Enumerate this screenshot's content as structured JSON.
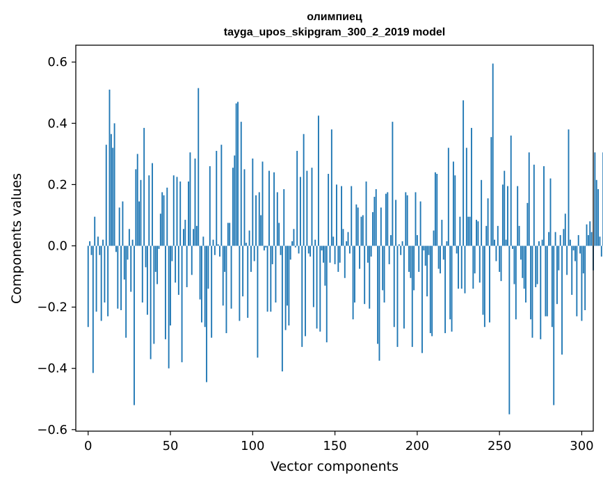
{
  "chart_data": {
    "type": "bar",
    "title": "олимпиец",
    "subtitle": "tayga_upos_skipgram_300_2_2019 model",
    "xlabel": "Vector components",
    "ylabel": "Components values",
    "xlim": [
      -7.5,
      307
    ],
    "ylim": [
      -0.605,
      0.655
    ],
    "xticks": [
      0,
      50,
      100,
      150,
      200,
      250,
      300
    ],
    "xtick_labels": [
      "0",
      "50",
      "100",
      "150",
      "200",
      "250",
      "300"
    ],
    "yticks": [
      -0.6,
      -0.4,
      -0.2,
      0.0,
      0.2,
      0.4,
      0.6
    ],
    "ytick_labels": [
      "−0.6",
      "−0.4",
      "−0.2",
      "0.0",
      "0.2",
      "0.4",
      "0.6"
    ],
    "bar_color": "#1f77b4",
    "x_start": 0,
    "values": [
      -0.265,
      0.015,
      -0.03,
      -0.415,
      0.095,
      -0.215,
      0.03,
      -0.03,
      -0.245,
      0.02,
      -0.185,
      0.33,
      -0.23,
      0.51,
      0.365,
      0.32,
      0.4,
      -0.02,
      -0.205,
      0.125,
      -0.21,
      0.145,
      -0.11,
      -0.3,
      -0.045,
      0.055,
      -0.15,
      0.02,
      -0.52,
      0.25,
      0.3,
      0.145,
      0.215,
      -0.185,
      0.385,
      -0.07,
      -0.225,
      0.23,
      -0.37,
      0.27,
      -0.32,
      -0.085,
      -0.125,
      -0.01,
      0.105,
      0.175,
      0.165,
      -0.305,
      0.19,
      -0.4,
      -0.26,
      -0.05,
      0.23,
      -0.12,
      0.225,
      -0.16,
      0.21,
      -0.38,
      0.055,
      0.085,
      -0.135,
      0.21,
      0.305,
      -0.095,
      0.055,
      0.285,
      0.065,
      0.515,
      -0.175,
      -0.25,
      0.03,
      -0.265,
      -0.445,
      -0.14,
      0.26,
      -0.3,
      0.02,
      -0.03,
      0.31,
      0.005,
      -0.035,
      0.33,
      -0.195,
      -0.085,
      -0.285,
      0.075,
      0.075,
      -0.205,
      0.255,
      0.295,
      0.465,
      0.47,
      -0.245,
      0.405,
      -0.165,
      0.25,
      0.01,
      -0.235,
      0.05,
      -0.085,
      0.285,
      -0.05,
      0.165,
      -0.365,
      0.175,
      0.1,
      0.275,
      -0.015,
      -0.005,
      -0.215,
      0.245,
      -0.215,
      -0.06,
      0.24,
      -0.185,
      0.175,
      0.075,
      -0.03,
      -0.41,
      0.185,
      -0.275,
      -0.195,
      -0.26,
      -0.045,
      0.015,
      0.055,
      -0.005,
      0.31,
      -0.025,
      0.225,
      -0.33,
      0.365,
      -0.295,
      0.245,
      -0.025,
      -0.035,
      0.255,
      -0.2,
      0.02,
      -0.27,
      0.425,
      -0.28,
      -0.015,
      -0.055,
      -0.13,
      -0.315,
      0.235,
      -0.055,
      0.38,
      0.03,
      -0.06,
      0.2,
      -0.085,
      -0.055,
      0.195,
      0.055,
      -0.105,
      0.015,
      0.045,
      -0.025,
      0.195,
      -0.24,
      -0.185,
      0.135,
      0.125,
      -0.075,
      0.095,
      0.1,
      -0.19,
      0.21,
      -0.055,
      -0.205,
      -0.035,
      0.11,
      0.16,
      0.185,
      -0.32,
      -0.375,
      0.125,
      -0.145,
      -0.185,
      0.17,
      0.175,
      -0.06,
      0.035,
      0.405,
      -0.265,
      0.15,
      -0.33,
      0.005,
      -0.03,
      0.015,
      -0.27,
      0.175,
      0.165,
      -0.085,
      -0.105,
      -0.33,
      -0.145,
      0.175,
      0.035,
      -0.085,
      0.145,
      -0.35,
      -0.015,
      -0.065,
      -0.165,
      -0.03,
      -0.285,
      -0.295,
      0.05,
      0.24,
      0.235,
      -0.075,
      -0.09,
      0.085,
      -0.045,
      -0.285,
      0.015,
      0.32,
      -0.24,
      -0.28,
      0.275,
      0.23,
      -0.025,
      -0.14,
      0.095,
      -0.14,
      0.475,
      -0.155,
      0.32,
      0.095,
      0.095,
      0.385,
      -0.14,
      -0.09,
      0.085,
      0.08,
      -0.12,
      0.215,
      -0.225,
      -0.265,
      0.065,
      0.155,
      -0.25,
      0.355,
      0.595,
      0.02,
      -0.05,
      0.065,
      -0.085,
      -0.115,
      0.2,
      0.245,
      0.02,
      0.195,
      -0.55,
      0.36,
      -0.01,
      -0.125,
      -0.24,
      0.195,
      0.065,
      -0.045,
      -0.105,
      -0.14,
      -0.185,
      0.14,
      0.305,
      -0.24,
      -0.3,
      0.265,
      -0.135,
      -0.125,
      0.015,
      -0.305,
      0.02,
      0.26,
      -0.23,
      -0.23,
      0.045,
      0.22,
      -0.265,
      -0.52,
      0.045,
      -0.19,
      -0.08,
      0.035,
      -0.355,
      0.055,
      0.105,
      -0.095,
      0.38,
      0.02,
      -0.16,
      -0.015,
      -0.05,
      -0.23,
      0.035,
      -0.025,
      -0.245,
      -0.09,
      -0.21,
      0.07,
      0.035,
      0.08,
      0.045,
      -0.08,
      0.305,
      0.215,
      0.185,
      0.03,
      -0.035,
      0.305
    ]
  }
}
